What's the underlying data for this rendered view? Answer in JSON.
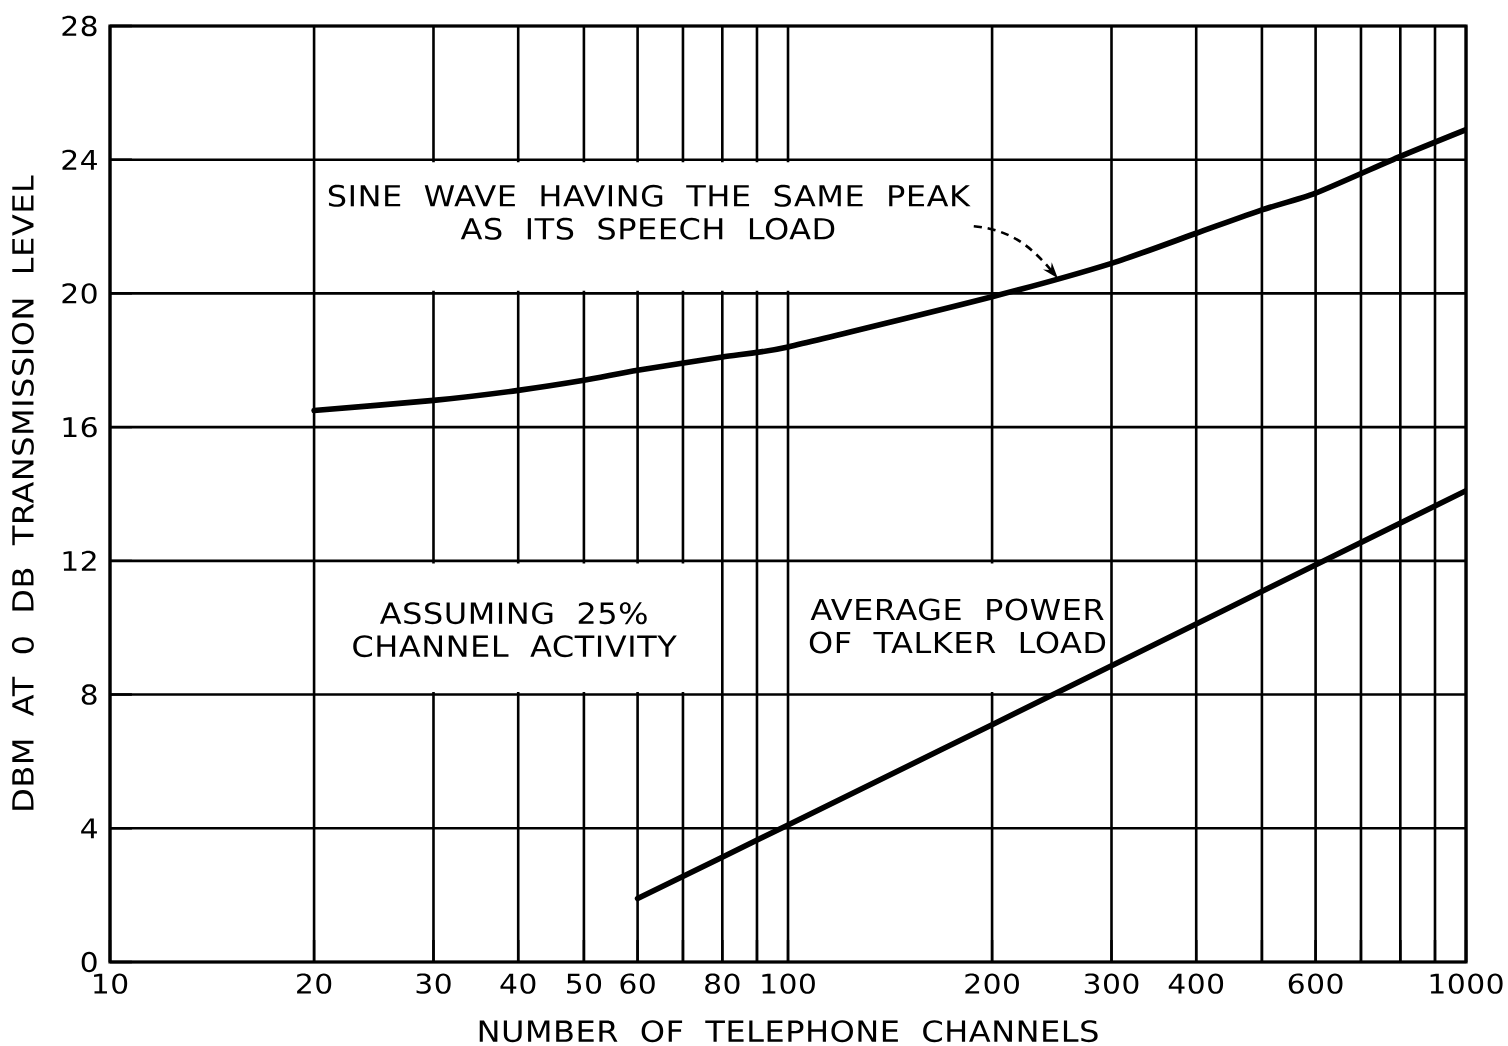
{
  "chart_data": {
    "type": "line",
    "xlabel": "NUMBER OF TELEPHONE CHANNELS",
    "ylabel": "DBM AT 0 DB TRANSMISSION LEVEL",
    "log": "x",
    "xlim": [
      10,
      1000
    ],
    "ylim": [
      0,
      28
    ],
    "xticks": [
      10,
      20,
      30,
      40,
      50,
      60,
      {
        "value": 70,
        "label": null
      },
      80,
      {
        "value": 90,
        "label": null
      },
      100,
      200,
      300,
      400,
      {
        "value": 500,
        "label": null
      },
      600,
      {
        "value": 700,
        "label": null
      },
      {
        "value": 800,
        "label": null
      },
      {
        "value": 900,
        "label": null
      },
      1000
    ],
    "yticks": [
      0,
      4,
      8,
      12,
      16,
      20,
      24,
      28
    ],
    "grid": true,
    "marker": "none",
    "line_style": "solid",
    "series": [
      {
        "name": "SINE WAVE HAVING THE SAME PEAK AS ITS SPEECH LOAD",
        "color": "#000000",
        "x": [
          20,
          30,
          40,
          50,
          60,
          80,
          100,
          200,
          300,
          400,
          500,
          600,
          800,
          1000
        ],
        "values": [
          16.5,
          16.8,
          17.1,
          17.4,
          17.7,
          18.1,
          18.4,
          19.9,
          20.9,
          21.8,
          22.5,
          23.0,
          24.1,
          24.9
        ]
      },
      {
        "name": "AVERAGE POWER OF TALKER LOAD",
        "color": "#000000",
        "x": [
          60,
          100,
          200,
          1000
        ],
        "values": [
          1.9,
          4.1,
          7.1,
          14.1
        ]
      }
    ],
    "annotations": [
      "ASSUMING 25% CHANNEL ACTIVITY"
    ]
  }
}
